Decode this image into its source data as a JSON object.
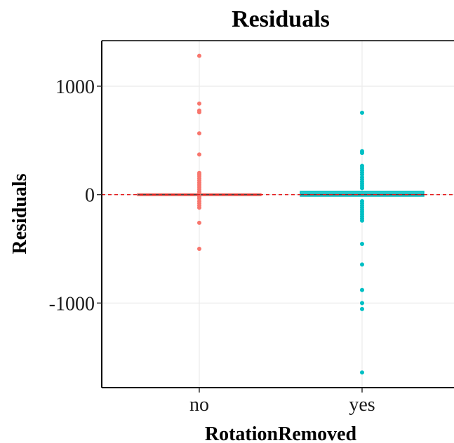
{
  "chart_data": {
    "type": "boxplot",
    "title": "Residuals",
    "xlabel": "RotationRemoved",
    "ylabel": "Residuals",
    "categories": [
      "no",
      "yes"
    ],
    "ylim": [
      -1780,
      1420
    ],
    "y_ticks": [
      -1000,
      0,
      1000
    ],
    "y_tick_labels": [
      "-1000",
      "0",
      "1000"
    ],
    "reference_line": {
      "y": 0,
      "style": "dashed",
      "color": "#e41a1c"
    },
    "grid": true,
    "legend": "none",
    "series": [
      {
        "category": "no",
        "color": "#f8766d",
        "box": {
          "q1": -10,
          "median": 0,
          "q3": 8
        },
        "points": [
          1280,
          840,
          775,
          760,
          565,
          370,
          200,
          185,
          170,
          150,
          130,
          110,
          90,
          70,
          50,
          30,
          15,
          -20,
          -35,
          -60,
          -80,
          -100,
          -120,
          -260,
          -500
        ]
      },
      {
        "category": "yes",
        "color": "#00bfc4",
        "box": {
          "q1": -15,
          "median": 0,
          "q3": 30
        },
        "points": [
          755,
          400,
          385,
          265,
          245,
          225,
          205,
          185,
          160,
          140,
          120,
          100,
          80,
          60,
          -60,
          -80,
          -100,
          -120,
          -140,
          -160,
          -180,
          -200,
          -220,
          -240,
          -455,
          -645,
          -880,
          -1000,
          -1055,
          -1640
        ]
      }
    ]
  }
}
